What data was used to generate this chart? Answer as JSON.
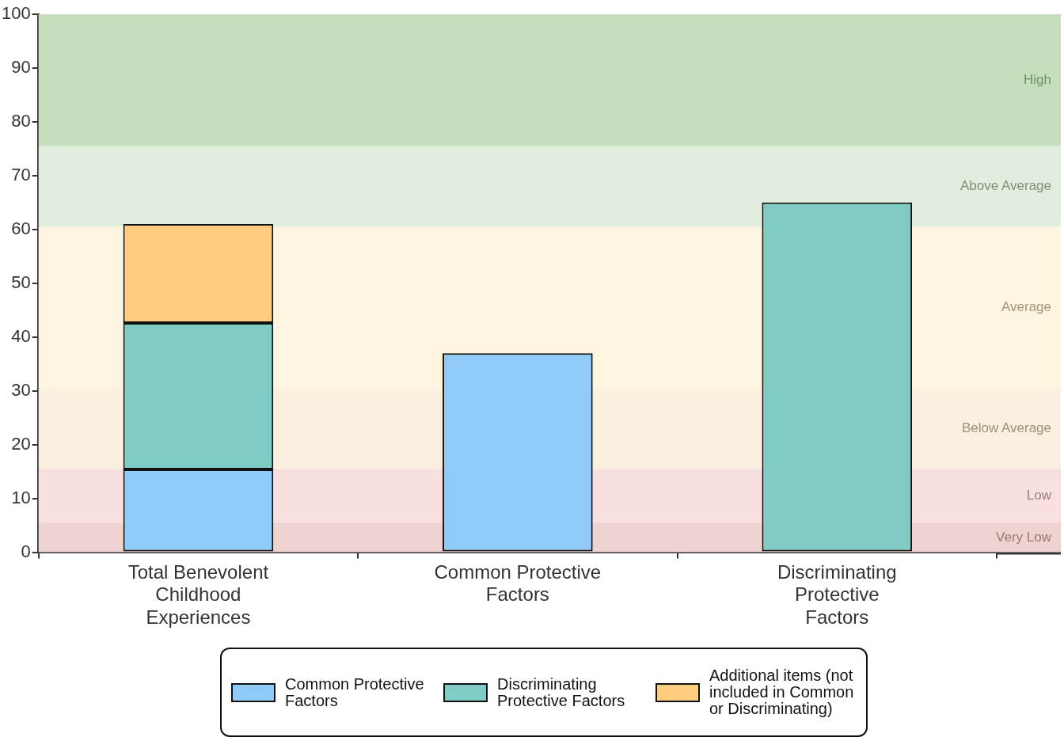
{
  "chart_data": {
    "type": "bar",
    "stacked": true,
    "categories": [
      "Total Benevolent Childhood Experiences",
      "Common Protective Factors",
      "Discriminating Protective Factors"
    ],
    "series": [
      {
        "name": "Common Protective Factors",
        "color": "#90caf9",
        "values": [
          15.4,
          37,
          null
        ]
      },
      {
        "name": "Discriminating Protective Factors",
        "color": "#80cbc4",
        "values": [
          27.2,
          null,
          65
        ]
      },
      {
        "name": "Additional items (not included in Common or Discriminating)",
        "color": "#ffcc80",
        "values": [
          18.4,
          null,
          null
        ]
      }
    ],
    "ylim": [
      0,
      100
    ],
    "yticks": [
      0,
      10,
      20,
      30,
      40,
      50,
      60,
      70,
      80,
      90,
      100
    ],
    "grid": false,
    "legend": "bottom",
    "bands": [
      {
        "axis": "y",
        "from": 0,
        "to": 5.5,
        "label": "Very Low",
        "color": "#efd3d0"
      },
      {
        "axis": "y",
        "from": 5.5,
        "to": 15.5,
        "label": "Low",
        "color": "#f8e0e0"
      },
      {
        "axis": "y",
        "from": 15.5,
        "to": 30.5,
        "label": "Below Average",
        "color": "#fbefe0"
      },
      {
        "axis": "y",
        "from": 30.5,
        "to": 60.5,
        "label": "Average",
        "color": "#fef5e0"
      },
      {
        "axis": "y",
        "from": 60.5,
        "to": 75.5,
        "label": "Above Average",
        "color": "#e2eedd"
      },
      {
        "axis": "y",
        "from": 75.5,
        "to": 100,
        "label": "High",
        "color": "#c5dfbd"
      }
    ]
  }
}
